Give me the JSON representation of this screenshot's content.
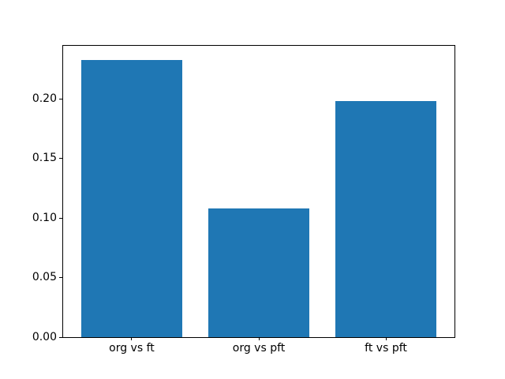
{
  "figure": {
    "background": "#ffffff",
    "spine_color": "#000000",
    "text_color": "#000000"
  },
  "chart_data": {
    "type": "bar",
    "categories": [
      "org vs ft",
      "org vs pft",
      "ft vs pft"
    ],
    "values": [
      0.233,
      0.108,
      0.198
    ],
    "yticks": [
      0,
      0.05,
      0.1,
      0.15,
      0.2
    ],
    "ytick_labels": [
      "0.00",
      "0.05",
      "0.10",
      "0.15",
      "0.20"
    ],
    "ylim": [
      0,
      0.2447
    ],
    "xlim": [
      -0.54,
      2.54
    ],
    "bar_width": 0.8,
    "bar_color": "#1f77b4",
    "grid": false,
    "legend_visible": false
  }
}
